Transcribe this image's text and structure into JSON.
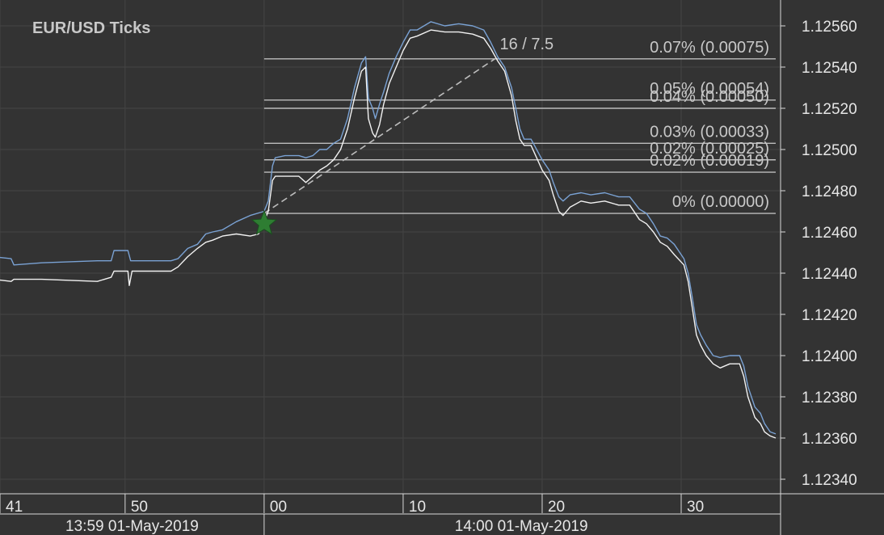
{
  "chart_data": {
    "type": "line",
    "title": "EUR/USD  Ticks",
    "ylim": [
      1.1233,
      1.12572
    ],
    "y_ticks": [
      "1.12340",
      "1.12360",
      "1.12380",
      "1.12400",
      "1.12420",
      "1.12440",
      "1.12460",
      "1.12480",
      "1.12500",
      "1.12520",
      "1.12540",
      "1.12560"
    ],
    "time_axis": {
      "minor_ticks": [
        {
          "label": "41",
          "t": 41
        },
        {
          "label": "50",
          "t": 50
        },
        {
          "label": "00",
          "t": 60
        },
        {
          "label": "10",
          "t": 70
        },
        {
          "label": "20",
          "t": 80
        },
        {
          "label": "30",
          "t": 90
        }
      ],
      "major_labels": [
        {
          "label": "13:59 01-May-2019",
          "t_start": 41,
          "t_end": 60
        },
        {
          "label": "14:00 01-May-2019",
          "t_start": 60,
          "t_end": 97
        }
      ],
      "t_range": [
        40.5,
        97.0
      ]
    },
    "series": [
      {
        "color": "#7aa2d4",
        "points": [
          [
            40.5,
            1.12448
          ],
          [
            41.8,
            1.12447
          ],
          [
            42.0,
            1.12444
          ],
          [
            44,
            1.12445
          ],
          [
            48,
            1.12446
          ],
          [
            49,
            1.12446
          ],
          [
            49.2,
            1.12451
          ],
          [
            50.2,
            1.12451
          ],
          [
            50.4,
            1.12446
          ],
          [
            52,
            1.12446
          ],
          [
            53.3,
            1.12446
          ],
          [
            53.8,
            1.12447
          ],
          [
            54.5,
            1.12452
          ],
          [
            55.2,
            1.12454
          ],
          [
            55.8,
            1.12459
          ],
          [
            56.3,
            1.1246
          ],
          [
            57,
            1.12461
          ],
          [
            58,
            1.12465
          ],
          [
            59,
            1.12468
          ],
          [
            60,
            1.1247
          ],
          [
            60.3,
            1.12475
          ],
          [
            60.6,
            1.12492
          ],
          [
            60.8,
            1.12496
          ],
          [
            61.5,
            1.12497
          ],
          [
            62.5,
            1.12497
          ],
          [
            63,
            1.12496
          ],
          [
            63.5,
            1.12497
          ],
          [
            64.0,
            1.125
          ],
          [
            64.5,
            1.125
          ],
          [
            65,
            1.12503
          ],
          [
            65.5,
            1.12505
          ],
          [
            66.0,
            1.12515
          ],
          [
            66.5,
            1.1253
          ],
          [
            67.0,
            1.12542
          ],
          [
            67.3,
            1.12545
          ],
          [
            67.5,
            1.12525
          ],
          [
            67.8,
            1.1252
          ],
          [
            68.0,
            1.12515
          ],
          [
            68.3,
            1.12522
          ],
          [
            68.6,
            1.12528
          ],
          [
            69.0,
            1.12537
          ],
          [
            69.5,
            1.12545
          ],
          [
            70,
            1.12552
          ],
          [
            70.5,
            1.12558
          ],
          [
            71,
            1.12558
          ],
          [
            72,
            1.12562
          ],
          [
            73,
            1.1256
          ],
          [
            74,
            1.12561
          ],
          [
            75,
            1.1256
          ],
          [
            75.8,
            1.12558
          ],
          [
            76.3,
            1.12552
          ],
          [
            76.8,
            1.12545
          ],
          [
            77.3,
            1.1254
          ],
          [
            77.8,
            1.1253
          ],
          [
            78.1,
            1.1252
          ],
          [
            78.4,
            1.1251
          ],
          [
            78.7,
            1.12505
          ],
          [
            79.2,
            1.12505
          ],
          [
            79.6,
            1.125
          ],
          [
            80.0,
            1.12495
          ],
          [
            80.5,
            1.1249
          ],
          [
            80.8,
            1.12484
          ],
          [
            81.2,
            1.12477
          ],
          [
            81.5,
            1.12475
          ],
          [
            82.0,
            1.12478
          ],
          [
            82.8,
            1.12479
          ],
          [
            83.5,
            1.12478
          ],
          [
            84.5,
            1.12479
          ],
          [
            85.5,
            1.12477
          ],
          [
            86.3,
            1.12477
          ],
          [
            87.0,
            1.12471
          ],
          [
            87.5,
            1.12469
          ],
          [
            88.0,
            1.12464
          ],
          [
            88.5,
            1.12458
          ],
          [
            89.0,
            1.12457
          ],
          [
            89.5,
            1.12454
          ],
          [
            90.2,
            1.12447
          ],
          [
            90.5,
            1.1244
          ],
          [
            90.8,
            1.12428
          ],
          [
            91.1,
            1.12415
          ],
          [
            91.4,
            1.1241
          ],
          [
            91.8,
            1.12405
          ],
          [
            92.3,
            1.124
          ],
          [
            92.8,
            1.12399
          ],
          [
            93.5,
            1.124
          ],
          [
            94.2,
            1.124
          ],
          [
            94.5,
            1.12395
          ],
          [
            94.8,
            1.12385
          ],
          [
            95.3,
            1.12375
          ],
          [
            95.7,
            1.12372
          ],
          [
            96.0,
            1.12367
          ],
          [
            96.4,
            1.12363
          ],
          [
            96.8,
            1.12362
          ]
        ]
      },
      {
        "color": "#f2f2f2",
        "points": [
          [
            40.5,
            1.12437
          ],
          [
            41.8,
            1.12436
          ],
          [
            42.0,
            1.12437
          ],
          [
            44,
            1.12437
          ],
          [
            48,
            1.12436
          ],
          [
            49,
            1.12438
          ],
          [
            49.2,
            1.12441
          ],
          [
            50.2,
            1.12441
          ],
          [
            50.3,
            1.12434
          ],
          [
            50.5,
            1.12441
          ],
          [
            52,
            1.12441
          ],
          [
            53.3,
            1.12441
          ],
          [
            53.8,
            1.12443
          ],
          [
            54.5,
            1.12448
          ],
          [
            55.2,
            1.12452
          ],
          [
            55.8,
            1.12455
          ],
          [
            56.3,
            1.12456
          ],
          [
            57,
            1.12458
          ],
          [
            58,
            1.12459
          ],
          [
            59,
            1.12458
          ],
          [
            59.6,
            1.12459
          ],
          [
            60,
            1.12465
          ],
          [
            60.3,
            1.1247
          ],
          [
            60.6,
            1.12485
          ],
          [
            60.8,
            1.12487
          ],
          [
            61.5,
            1.12487
          ],
          [
            62.5,
            1.12487
          ],
          [
            63,
            1.12484
          ],
          [
            63.5,
            1.12487
          ],
          [
            64.0,
            1.1249
          ],
          [
            64.5,
            1.12492
          ],
          [
            65,
            1.12495
          ],
          [
            65.5,
            1.125
          ],
          [
            66.0,
            1.1251
          ],
          [
            66.5,
            1.12525
          ],
          [
            67.0,
            1.12538
          ],
          [
            67.3,
            1.1254
          ],
          [
            67.5,
            1.12515
          ],
          [
            67.8,
            1.12508
          ],
          [
            68.0,
            1.12506
          ],
          [
            68.3,
            1.12512
          ],
          [
            68.6,
            1.12522
          ],
          [
            69.0,
            1.12532
          ],
          [
            69.5,
            1.1254
          ],
          [
            70,
            1.12548
          ],
          [
            70.5,
            1.12554
          ],
          [
            71,
            1.12555
          ],
          [
            72,
            1.12558
          ],
          [
            73,
            1.12557
          ],
          [
            74,
            1.12557
          ],
          [
            75,
            1.12556
          ],
          [
            75.8,
            1.12554
          ],
          [
            76.3,
            1.12549
          ],
          [
            76.8,
            1.12543
          ],
          [
            77.3,
            1.12538
          ],
          [
            77.8,
            1.12526
          ],
          [
            78.1,
            1.12514
          ],
          [
            78.4,
            1.12505
          ],
          [
            78.7,
            1.12502
          ],
          [
            79.2,
            1.12502
          ],
          [
            79.6,
            1.12496
          ],
          [
            80.0,
            1.1249
          ],
          [
            80.5,
            1.12485
          ],
          [
            80.8,
            1.12478
          ],
          [
            81.2,
            1.1247
          ],
          [
            81.5,
            1.12468
          ],
          [
            82.0,
            1.12472
          ],
          [
            82.8,
            1.12475
          ],
          [
            83.5,
            1.12474
          ],
          [
            84.5,
            1.12475
          ],
          [
            85.5,
            1.12473
          ],
          [
            86.3,
            1.12473
          ],
          [
            87.0,
            1.12466
          ],
          [
            87.5,
            1.12464
          ],
          [
            88.0,
            1.1246
          ],
          [
            88.5,
            1.12455
          ],
          [
            89.0,
            1.12453
          ],
          [
            89.5,
            1.12449
          ],
          [
            90.2,
            1.12444
          ],
          [
            90.5,
            1.12436
          ],
          [
            90.8,
            1.12423
          ],
          [
            91.1,
            1.1241
          ],
          [
            91.4,
            1.12405
          ],
          [
            91.8,
            1.124
          ],
          [
            92.3,
            1.12396
          ],
          [
            92.8,
            1.12394
          ],
          [
            93.5,
            1.12396
          ],
          [
            94.2,
            1.12396
          ],
          [
            94.5,
            1.1239
          ],
          [
            94.8,
            1.1238
          ],
          [
            95.3,
            1.1237
          ],
          [
            95.7,
            1.12367
          ],
          [
            96.0,
            1.12363
          ],
          [
            96.4,
            1.12361
          ],
          [
            96.8,
            1.1236
          ]
        ]
      }
    ],
    "fibonacci": {
      "t_start": 60.0,
      "t_end": 96.8,
      "levels": [
        {
          "label": "0.07% (0.00075)",
          "value": 1.12544
        },
        {
          "label": "0.05% (0.00054)",
          "value": 1.12524
        },
        {
          "label": "0.04% (0.00050)",
          "value": 1.1252
        },
        {
          "label": "0.03% (0.00033)",
          "value": 1.12503
        },
        {
          "label": "0.02% (0.00025)",
          "value": 1.12495
        },
        {
          "label": "0.02% (0.00019)",
          "value": 1.12489
        },
        {
          "label": "0% (0.00000)",
          "value": 1.12469
        }
      ]
    },
    "trendline": {
      "from": [
        60.0,
        1.12469
      ],
      "to": [
        76.6,
        1.12544
      ],
      "label": "16 / 7.5"
    },
    "marker": {
      "shape": "star",
      "color": "#2e7d32",
      "t": 60.0,
      "value": 1.12464
    },
    "grid": true,
    "colors": {
      "background": "#333333",
      "grid": "#444444",
      "fib_line": "#bdbdbd",
      "axis": "#d9d9d9"
    }
  }
}
